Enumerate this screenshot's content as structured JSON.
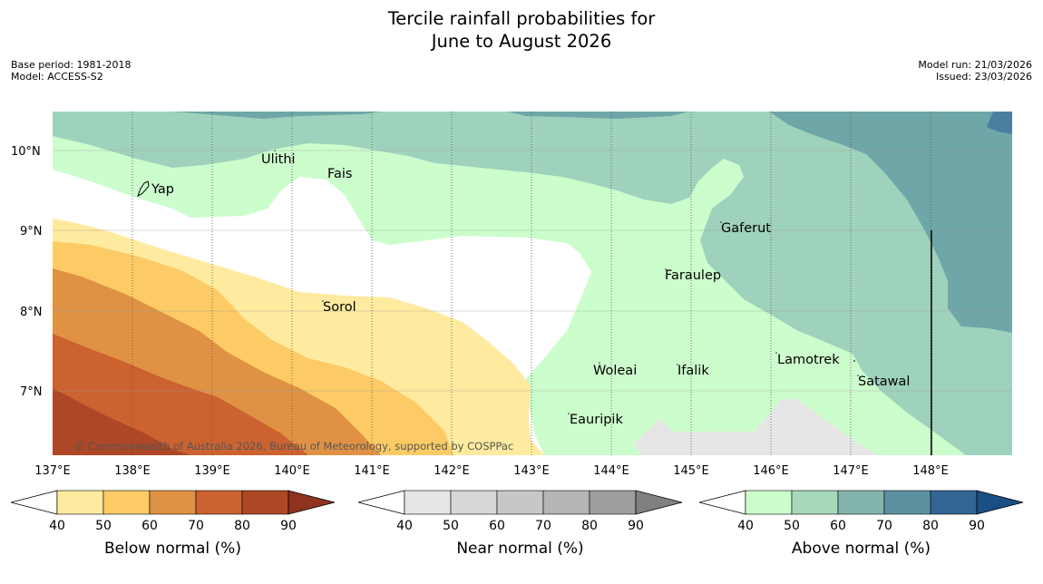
{
  "title": {
    "line1": "Tercile rainfall probabilities for",
    "line2": "June to August 2026"
  },
  "meta": {
    "base_period": "Base period: 1981-2018",
    "model": "Model: ACCESS-S2",
    "model_run": "Model run: 21/03/2026",
    "issued": "Issued: 23/03/2026"
  },
  "map": {
    "longitude_labels": [
      "137°E",
      "138°E",
      "139°E",
      "140°E",
      "141°E",
      "142°E",
      "143°E",
      "144°E",
      "145°E",
      "146°E",
      "147°E",
      "148°E"
    ],
    "latitude_labels": [
      "10°N",
      "9°N",
      "8°N",
      "7°N"
    ],
    "places": {
      "ulithi": "Ulithi",
      "fais": "Fais",
      "yap": "Yap",
      "gaferut": "Gaferut",
      "faraulep": "Faraulep",
      "sorol": "Sorol",
      "woleai": "Woleai",
      "ifalik": "Ifalik",
      "lamotrek": "Lamotrek",
      "satawal": "Satawal",
      "eauripik": "Eauripik"
    },
    "copyright": "© Commonwealth of Australia 2026, Bureau of Meteorology, supported by COSPPac"
  },
  "colorbars": {
    "ticks": [
      "40",
      "50",
      "60",
      "70",
      "80",
      "90"
    ],
    "below": {
      "title": "Below normal (%)",
      "colors": [
        "#ffeb9f",
        "#fdcb66",
        "#e09244",
        "#cb6230",
        "#ae4725",
        "#8f3220"
      ]
    },
    "near": {
      "title": "Near normal (%)",
      "colors": [
        "#e6e6e6",
        "#d7d7d7",
        "#c7c7c7",
        "#b5b5b5",
        "#9e9e9e",
        "#808080"
      ]
    },
    "above": {
      "title": "Above normal (%)",
      "colors": [
        "#ccfdcc",
        "#a6d8bb",
        "#84b5ad",
        "#5d919f",
        "#326594",
        "#1b4e83"
      ]
    }
  }
}
